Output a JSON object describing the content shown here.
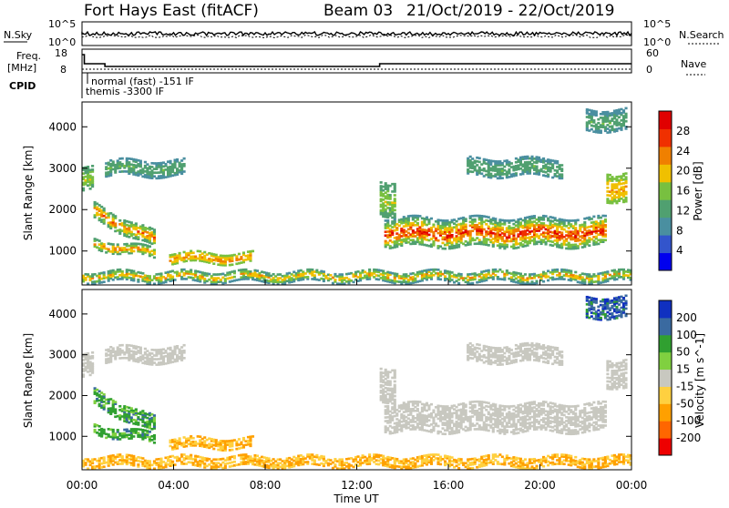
{
  "header": {
    "station": "Fort Hays East (fitACF)",
    "beam": "Beam 03",
    "date_range": "21/Oct/2019 - 22/Oct/2019"
  },
  "panel_nsky": {
    "left_label": "N.Sky",
    "right_label": "N.Search",
    "left_ticks": [
      "10^5",
      "10^0"
    ],
    "right_ticks": [
      "10^5",
      "10^0"
    ]
  },
  "panel_freq": {
    "left_label_1": "Freq.",
    "left_label_2": "[MHz]",
    "left_ticks": [
      "18",
      "8"
    ],
    "right_label": "Nave",
    "right_ticks": [
      "60",
      "0"
    ]
  },
  "panel_cpid": {
    "label": "CPID",
    "entries": [
      "normal (fast) -151 IF",
      "themis -3300 IF"
    ]
  },
  "colors": {
    "power": [
      "#0000ee",
      "#3355cc",
      "#4a8fa0",
      "#50a070",
      "#78c040",
      "#f0c000",
      "#f08000",
      "#f03000",
      "#e00000"
    ],
    "velocity": [
      "#ee0000",
      "#ff6600",
      "#ffa000",
      "#ffd040",
      "#c8c8c0",
      "#80d040",
      "#30a030",
      "#3a6aa0",
      "#1030c0"
    ]
  },
  "chart_data": [
    {
      "type": "heatmap",
      "name": "power",
      "xlabel": "",
      "ylabel": "Slant Range [km]",
      "y_ticks": [
        1000,
        2000,
        3000,
        4000
      ],
      "colorbar_label": "Power [dB]",
      "colorbar_ticks": [
        4,
        8,
        12,
        16,
        20,
        24,
        28
      ],
      "colorbar_range": [
        0,
        30
      ]
    },
    {
      "type": "heatmap",
      "name": "velocity",
      "xlabel": "Time UT",
      "x_ticks": [
        "00:00",
        "04:00",
        "08:00",
        "12:00",
        "16:00",
        "20:00",
        "00:00"
      ],
      "ylabel": "Slant Range [km]",
      "y_ticks": [
        1000,
        2000,
        3000,
        4000
      ],
      "colorbar_label": "Velocity [m s^-1]",
      "colorbar_ticks": [
        200,
        100,
        50,
        15,
        -15,
        -50,
        -100,
        -200
      ]
    }
  ],
  "echo_regions": [
    {
      "t0": 0.0,
      "t1": 0.5,
      "r0": 2450,
      "r1": 3000,
      "p": [
        10,
        18
      ],
      "v": [
        -15,
        15
      ]
    },
    {
      "t0": 0.5,
      "t1": 3.2,
      "r0": 1750,
      "r1": 2150,
      "p": [
        8,
        26
      ],
      "v": [
        15,
        90
      ],
      "slope": -700
    },
    {
      "t0": 0.5,
      "t1": 3.2,
      "r0": 1050,
      "r1": 1300,
      "p": [
        8,
        26
      ],
      "v": [
        15,
        90
      ],
      "slope": -250
    },
    {
      "t0": 3.8,
      "t1": 7.4,
      "r0": 700,
      "r1": 950,
      "p": [
        14,
        24
      ],
      "v": [
        -50,
        -15
      ]
    },
    {
      "t0": 0.0,
      "t1": 24.0,
      "r0": 250,
      "r1": 520,
      "p": [
        6,
        24
      ],
      "v": [
        -50,
        -15
      ]
    },
    {
      "t0": 13.0,
      "t1": 13.6,
      "r0": 1850,
      "r1": 2700,
      "p": [
        10,
        18
      ],
      "v": [
        -15,
        15
      ]
    },
    {
      "t0": 13.2,
      "t1": 22.9,
      "r0": 1100,
      "r1": 1800,
      "p": [
        8,
        30
      ],
      "v": [
        -15,
        15
      ]
    },
    {
      "t0": 16.8,
      "t1": 21.0,
      "r0": 2800,
      "r1": 3250,
      "p": [
        8,
        14
      ],
      "v": [
        -15,
        15
      ]
    },
    {
      "t0": 22.9,
      "t1": 23.8,
      "r0": 2200,
      "r1": 2900,
      "p": [
        14,
        22
      ],
      "v": [
        -15,
        15
      ]
    },
    {
      "t0": 22.0,
      "t1": 23.8,
      "r0": 3900,
      "r1": 4400,
      "p": [
        8,
        14
      ],
      "v": [
        50,
        200
      ]
    },
    {
      "t0": 1.0,
      "t1": 4.5,
      "r0": 2800,
      "r1": 3200,
      "p": [
        8,
        14
      ],
      "v": [
        -15,
        15
      ]
    }
  ]
}
